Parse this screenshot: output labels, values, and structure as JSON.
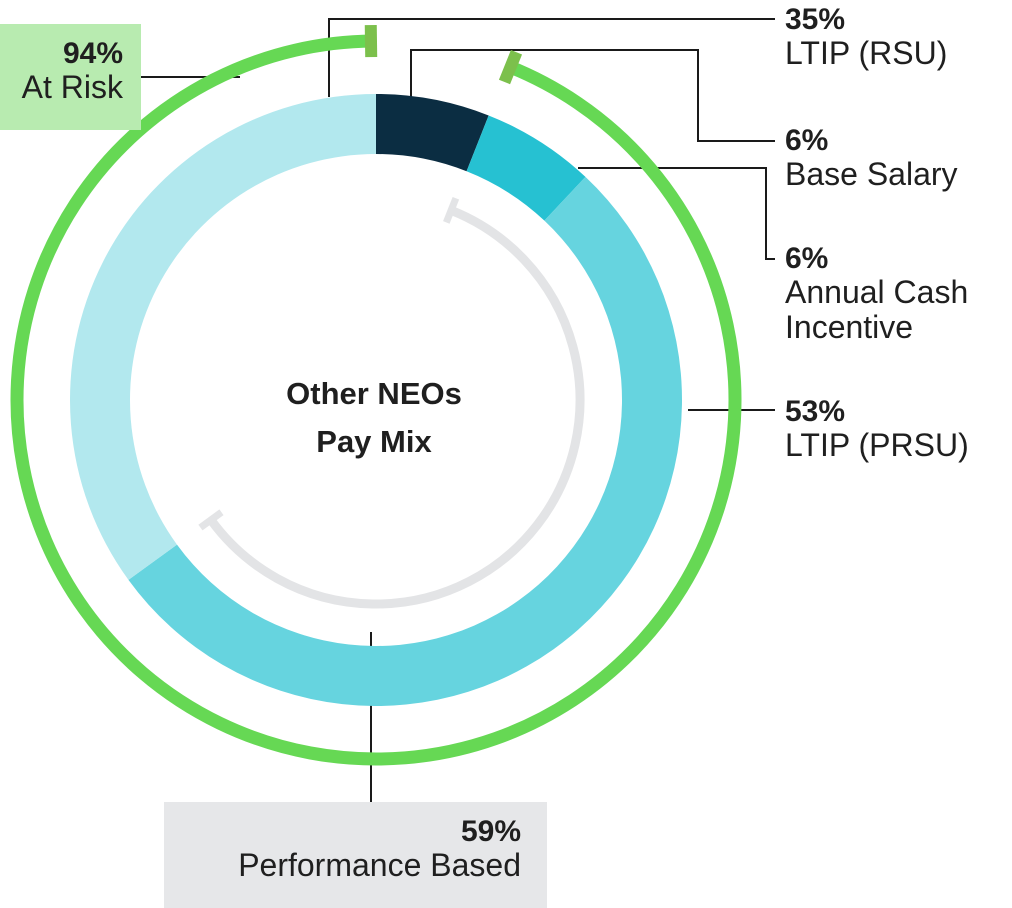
{
  "chart_data": {
    "type": "pie",
    "title": "Other NEOs\nPay Mix",
    "segments": [
      {
        "name": "Base Salary",
        "value": 6,
        "label": "6%",
        "color": "#0b2d42"
      },
      {
        "name": "Annual Cash Incentive",
        "value": 6,
        "label": "6%",
        "color": "#26c1d2"
      },
      {
        "name": "LTIP (PRSU)",
        "value": 53,
        "label": "53%",
        "color": "#66d4df"
      },
      {
        "name": "LTIP (RSU)",
        "value": 35,
        "label": "35%",
        "color": "#b2e8ee"
      }
    ],
    "groupings": [
      {
        "name": "At Risk",
        "value": 94,
        "label": "94%",
        "color": "#66d854",
        "bg": "#b8ebb0"
      },
      {
        "name": "Performance Based",
        "value": 59,
        "label": "59%",
        "color": "#e3e4e6",
        "bg": "#e6e7e9"
      }
    ],
    "labels": {
      "ltip_rsu": {
        "pct": "35%",
        "name": "LTIP (RSU)"
      },
      "base_salary": {
        "pct": "6%",
        "name": "Base Salary"
      },
      "annual_cash": {
        "pct": "6%",
        "name_line1": "Annual Cash",
        "name_line2": "Incentive"
      },
      "ltip_prsu": {
        "pct": "53%",
        "name": "LTIP (PRSU)"
      },
      "at_risk": {
        "pct": "94%",
        "name": "At Risk"
      },
      "performance": {
        "pct": "59%",
        "name": "Performance Based"
      }
    },
    "leader_color": "#1a1a1a",
    "marker_color": "#7cc04c"
  }
}
